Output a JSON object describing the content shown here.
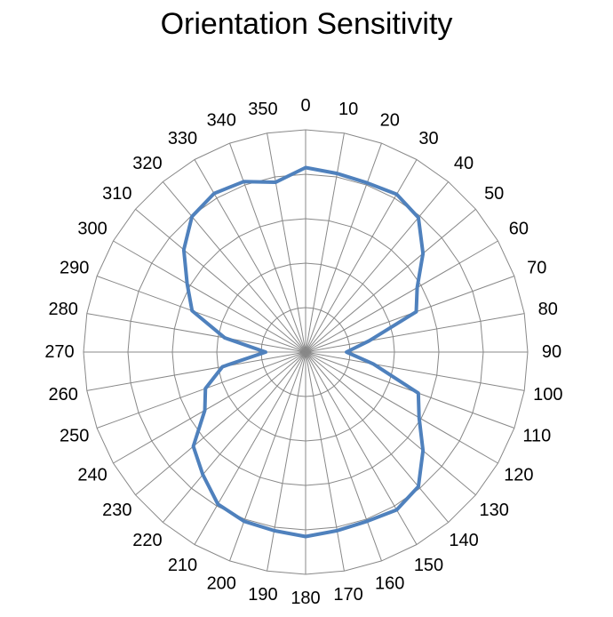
{
  "chart_data": {
    "type": "radar",
    "title": "Orientation Sensitivity",
    "angle_unit": "degrees",
    "angles": [
      0,
      10,
      20,
      30,
      40,
      50,
      60,
      70,
      80,
      90,
      100,
      110,
      120,
      130,
      140,
      150,
      160,
      170,
      180,
      190,
      200,
      210,
      220,
      230,
      240,
      250,
      260,
      270,
      280,
      290,
      300,
      310,
      320,
      330,
      340,
      350
    ],
    "tick_labels": [
      "0",
      "10",
      "20",
      "30",
      "40",
      "50",
      "60",
      "70",
      "80",
      "90",
      "100",
      "110",
      "120",
      "130",
      "140",
      "150",
      "160",
      "170",
      "180",
      "190",
      "200",
      "210",
      "220",
      "230",
      "240",
      "250",
      "260",
      "270",
      "280",
      "290",
      "300",
      "310",
      "320",
      "330",
      "340",
      "350"
    ],
    "radial_range": [
      0,
      5
    ],
    "ring_count": 5,
    "series": [
      {
        "values": [
          4.15,
          4.08,
          4.05,
          4.1,
          3.95,
          3.45,
          2.9,
          2.65,
          1.45,
          0.92,
          1.55,
          2.7,
          2.95,
          3.45,
          3.95,
          4.1,
          4.05,
          4.08,
          4.15,
          4.08,
          4.05,
          3.95,
          3.6,
          3.3,
          2.62,
          2.4,
          1.9,
          0.9,
          1.85,
          2.72,
          3.08,
          3.58,
          3.98,
          4.12,
          4.08,
          3.88
        ],
        "color": "#4F81BD"
      }
    ],
    "colors": {
      "grid": "#888888",
      "series": "#4F81BD"
    },
    "grid": true
  }
}
